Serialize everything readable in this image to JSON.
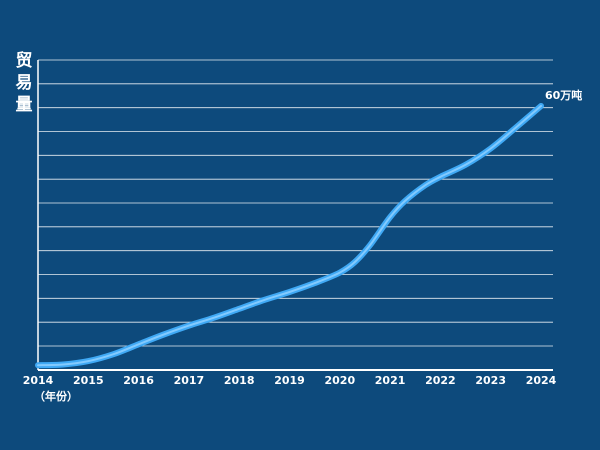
{
  "chart_data": {
    "type": "line",
    "ylabel_chars": [
      "贸",
      "易",
      "量"
    ],
    "xlabel": "（年份）",
    "categories": [
      "2014",
      "2015",
      "2016",
      "2017",
      "2018",
      "2019",
      "2020",
      "2021",
      "2022",
      "2023",
      "2024"
    ],
    "x": [
      2014,
      2014.5,
      2015,
      2015.5,
      2016,
      2016.5,
      2017,
      2017.5,
      2018,
      2018.5,
      2019,
      2019.5,
      2020,
      2020.3,
      2020.6,
      2021,
      2021.3,
      2021.7,
      2022,
      2022.5,
      2023,
      2023.5,
      2024
    ],
    "series": [
      {
        "values": [
          2.0,
          2.3,
          3.7,
          6.6,
          10.7,
          14.8,
          18.5,
          21.8,
          25.5,
          29.2,
          32.5,
          36.2,
          40.6,
          45.0,
          52.0,
          63.7,
          70.5,
          77.0,
          80.5,
          85.5,
          92.3,
          101.0,
          110.0
        ]
      }
    ],
    "ylim": [
      0,
      120
    ],
    "gridline_count": 13,
    "annotation": "60万吨",
    "colors": {
      "background": "#0d4a7c",
      "line": "#3fa9f5",
      "line_glow": "#8fd0ff",
      "grid": "#ffffff",
      "text": "#ffffff"
    }
  }
}
